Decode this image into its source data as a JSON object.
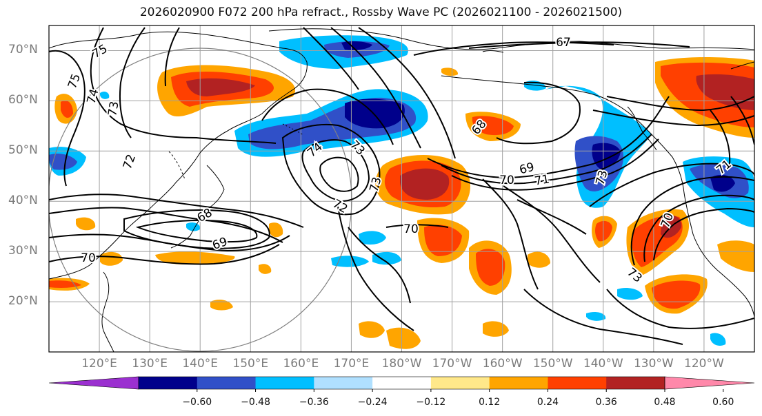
{
  "title": "2026020900 F072 200 hPa refract., Rossby Wave PC (2026021100 - 2026021500)",
  "axes": {
    "lat_labels": [
      "70°N",
      "60°N",
      "50°N",
      "40°N",
      "30°N",
      "20°N"
    ],
    "lat_values": [
      70,
      60,
      50,
      40,
      30,
      20
    ],
    "lon_labels": [
      "120°E",
      "130°E",
      "140°E",
      "150°E",
      "160°E",
      "170°E",
      "180°W",
      "170°W",
      "160°W",
      "150°W",
      "140°W",
      "130°W",
      "120°W"
    ],
    "lon_values": [
      120,
      130,
      140,
      150,
      160,
      170,
      180,
      190,
      200,
      210,
      220,
      230,
      240
    ],
    "lat_range": [
      10,
      75
    ],
    "lon_range": [
      110,
      250
    ]
  },
  "colorbar": {
    "ticks": [
      "−0.60",
      "−0.48",
      "−0.36",
      "−0.24",
      "−0.12",
      "0.12",
      "0.24",
      "0.36",
      "0.48",
      "0.60"
    ],
    "colors": [
      "#9b30d0",
      "#00008b",
      "#3050c8",
      "#00bfff",
      "#b0e0ff",
      "#ffffff",
      "#ffe88a",
      "#ffa500",
      "#ff4000",
      "#b22222",
      "#ff88aa"
    ]
  },
  "contour_labels": [
    "75",
    "75",
    "74",
    "73",
    "72",
    "67",
    "74",
    "73",
    "73",
    "72",
    "70",
    "69",
    "71",
    "70",
    "73",
    "71",
    "70",
    "68",
    "69",
    "70",
    "73",
    "68"
  ]
}
